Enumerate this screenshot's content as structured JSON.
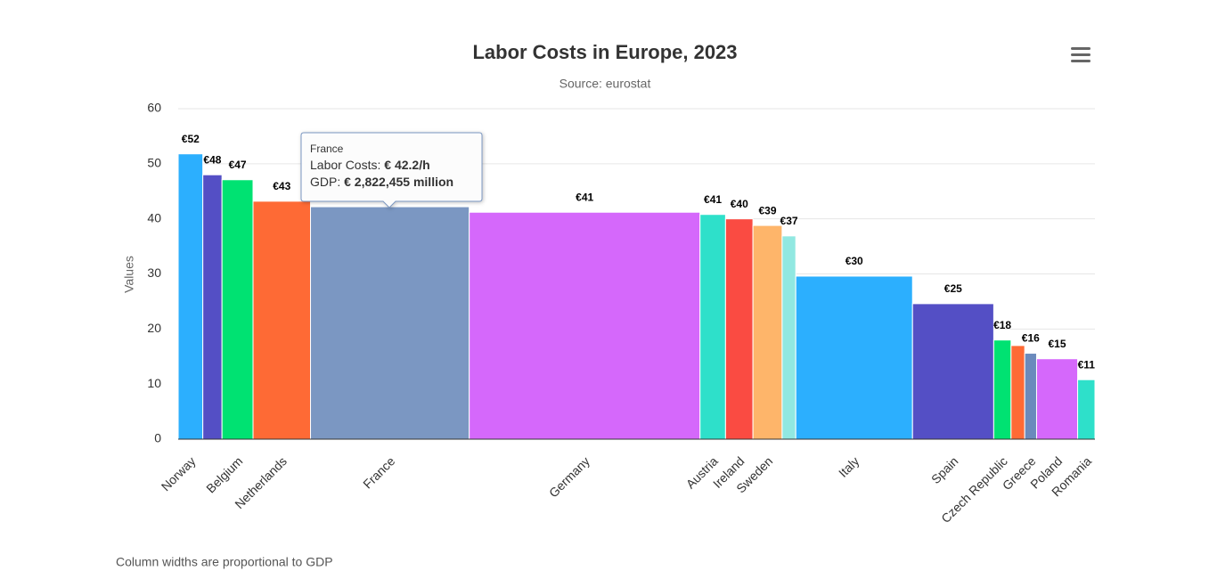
{
  "chart_data": {
    "type": "variwide",
    "title": "Labor Costs in Europe, 2023",
    "subtitle": "Source: eurostat",
    "y_axis_label": "Values",
    "caption": "Column widths are proportional to GDP",
    "categories": [
      "Norway",
      null,
      "Belgium",
      "Netherlands",
      "France",
      "Germany",
      "Austria",
      "Ireland",
      "Sweden",
      null,
      "Italy",
      "Spain",
      "Czech Republic",
      null,
      "Greece",
      "Poland",
      "Romania"
    ],
    "values": [
      51.8,
      48.0,
      47.1,
      43.2,
      42.2,
      41.2,
      40.8,
      40.0,
      38.8,
      36.9,
      29.6,
      24.6,
      18.0,
      17.0,
      15.6,
      14.6,
      10.8
    ],
    "value_labels": [
      "€52",
      "€48",
      "€47",
      "€43",
      null,
      "€41",
      "€41",
      "€40",
      "€39",
      "€37",
      "€30",
      "€25",
      "€18",
      null,
      "€16",
      "€15",
      "€11"
    ],
    "widths": [
      438000,
      341000,
      552000,
      1022000,
      2822455,
      4104000,
      454000,
      487000,
      519000,
      243000,
      2076000,
      1444000,
      308000,
      243000,
      211000,
      730000,
      308000
    ],
    "colors": [
      "#2caffe",
      "#544fc5",
      "#00e272",
      "#fe6a35",
      "#7b97c2",
      "#d568fb",
      "#2ee0ca",
      "#fa4b42",
      "#feb56a",
      "#91e8e1",
      "#2caffe",
      "#544fc5",
      "#00e272",
      "#fe6a35",
      "#6b8abc",
      "#d568fb",
      "#2ee0ca"
    ],
    "ylim": [
      0,
      60
    ],
    "yticks": [
      0,
      10,
      20,
      30,
      40,
      50,
      60
    ],
    "grid": true,
    "tooltip": {
      "title": "France",
      "rows": [
        {
          "label": "Labor Costs: ",
          "value": "€ 42.2/h"
        },
        {
          "label": "GDP: ",
          "value": "€ 2,822,455 million"
        }
      ]
    }
  }
}
